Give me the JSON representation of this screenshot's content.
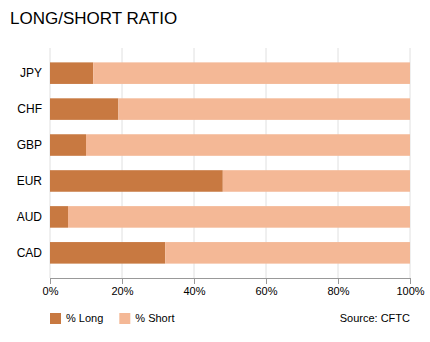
{
  "chart_data": {
    "type": "bar",
    "orientation": "horizontal",
    "stacked": true,
    "title": "LONG/SHORT RATIO",
    "categories": [
      "JPY",
      "CHF",
      "GBP",
      "EUR",
      "AUD",
      "CAD"
    ],
    "series": [
      {
        "name": "% Long",
        "color": "#c87941",
        "values": [
          12,
          19,
          10,
          48,
          5,
          32
        ]
      },
      {
        "name": "% Short",
        "color": "#f4b896",
        "values": [
          88,
          81,
          90,
          52,
          95,
          68
        ]
      }
    ],
    "xlim": [
      0,
      100
    ],
    "xticks": [
      {
        "value": 0,
        "label": "0%"
      },
      {
        "value": 20,
        "label": "20%"
      },
      {
        "value": 40,
        "label": "40%"
      },
      {
        "value": 60,
        "label": "60%"
      },
      {
        "value": 80,
        "label": "80%"
      },
      {
        "value": 100,
        "label": "100%"
      }
    ],
    "grid": true,
    "legend": "bottom",
    "annotations": [
      "Source: CFTC"
    ]
  }
}
